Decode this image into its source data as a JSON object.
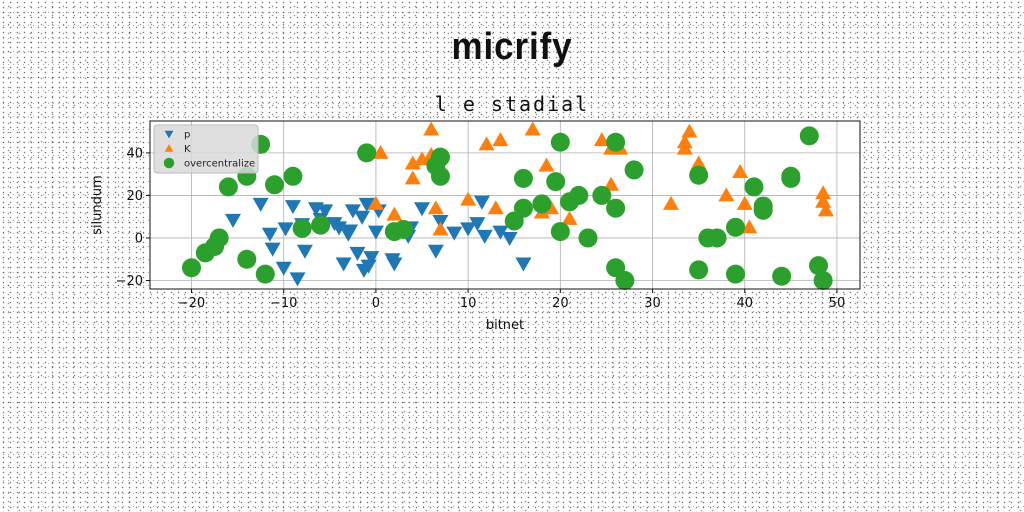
{
  "page_title": "micrify",
  "chart_data": {
    "type": "scatter",
    "title": "l e stadial",
    "xlabel": "bitnet",
    "ylabel": "silundum",
    "xlim": [
      -24.5,
      52.5
    ],
    "ylim": [
      -24,
      55
    ],
    "xticks": [
      -20,
      -10,
      0,
      10,
      20,
      30,
      40,
      50
    ],
    "yticks": [
      -20,
      0,
      20,
      40
    ],
    "grid": true,
    "legend_position": "top-left",
    "series": [
      {
        "name": "p",
        "marker": "triangle-down",
        "color": "#1f77b4",
        "points": [
          [
            -15.5,
            8.5
          ],
          [
            -12.5,
            16
          ],
          [
            -11.5,
            2
          ],
          [
            -11.2,
            -5
          ],
          [
            -10,
            -14
          ],
          [
            -9.8,
            4.5
          ],
          [
            -9,
            15
          ],
          [
            -8.5,
            -19
          ],
          [
            -8,
            6.5
          ],
          [
            -7.7,
            -6
          ],
          [
            -6.5,
            14
          ],
          [
            -6,
            9
          ],
          [
            -5.5,
            13
          ],
          [
            -4.5,
            7
          ],
          [
            -4,
            5
          ],
          [
            -3.5,
            -12
          ],
          [
            -3,
            2
          ],
          [
            -2.8,
            3.5
          ],
          [
            -2.5,
            13
          ],
          [
            -2,
            -7
          ],
          [
            -1.5,
            10
          ],
          [
            -1.3,
            -15
          ],
          [
            -1,
            16
          ],
          [
            -0.8,
            -13
          ],
          [
            -0.5,
            -9
          ],
          [
            0,
            3
          ],
          [
            0.3,
            13
          ],
          [
            1.8,
            -10
          ],
          [
            2,
            -12
          ],
          [
            3.5,
            1
          ],
          [
            3.8,
            5
          ],
          [
            5,
            14
          ],
          [
            6.5,
            -6
          ],
          [
            7,
            8
          ],
          [
            8.5,
            2.5
          ],
          [
            10,
            4.5
          ],
          [
            11,
            7
          ],
          [
            11.5,
            17
          ],
          [
            11.8,
            1
          ],
          [
            13.5,
            3
          ],
          [
            14.5,
            0
          ],
          [
            16,
            -12
          ]
        ]
      },
      {
        "name": "K",
        "marker": "triangle-up",
        "color": "#ff7f0e",
        "points": [
          [
            0,
            16
          ],
          [
            0.5,
            40
          ],
          [
            2,
            11
          ],
          [
            4,
            28
          ],
          [
            4,
            35
          ],
          [
            5,
            37
          ],
          [
            6,
            39
          ],
          [
            6,
            51
          ],
          [
            6.5,
            14
          ],
          [
            7,
            4
          ],
          [
            10,
            18
          ],
          [
            12,
            44
          ],
          [
            13,
            14
          ],
          [
            13.5,
            46
          ],
          [
            17,
            51
          ],
          [
            18,
            12
          ],
          [
            18.5,
            34
          ],
          [
            19,
            14
          ],
          [
            21,
            9
          ],
          [
            24.5,
            46
          ],
          [
            25.5,
            25
          ],
          [
            25.5,
            42
          ],
          [
            26.5,
            42
          ],
          [
            32,
            16
          ],
          [
            33.5,
            42
          ],
          [
            33.5,
            45
          ],
          [
            34,
            50
          ],
          [
            35,
            35
          ],
          [
            38,
            20
          ],
          [
            39.5,
            31
          ],
          [
            40,
            16
          ],
          [
            40.5,
            5
          ],
          [
            48.5,
            21
          ],
          [
            48.5,
            17
          ],
          [
            48.8,
            13
          ]
        ]
      },
      {
        "name": "overcentralize",
        "marker": "circle",
        "color": "#2ca02c",
        "points": [
          [
            -20,
            -14
          ],
          [
            -18.5,
            -7
          ],
          [
            -17.5,
            -4
          ],
          [
            -17,
            0
          ],
          [
            -16,
            24
          ],
          [
            -14,
            29
          ],
          [
            -14,
            -10
          ],
          [
            -12.5,
            44
          ],
          [
            -12,
            -17
          ],
          [
            -11,
            25
          ],
          [
            -9,
            29
          ],
          [
            -8,
            4.5
          ],
          [
            -6,
            6
          ],
          [
            -1,
            40
          ],
          [
            2,
            3
          ],
          [
            3,
            4
          ],
          [
            6.5,
            34
          ],
          [
            7,
            38
          ],
          [
            7,
            29
          ],
          [
            15,
            8
          ],
          [
            16,
            14
          ],
          [
            16,
            28
          ],
          [
            18,
            16
          ],
          [
            19.5,
            26.5
          ],
          [
            20,
            3
          ],
          [
            20,
            45
          ],
          [
            21,
            17
          ],
          [
            22,
            20
          ],
          [
            23,
            0
          ],
          [
            24.5,
            20
          ],
          [
            26,
            14
          ],
          [
            26,
            45
          ],
          [
            26,
            -14
          ],
          [
            27,
            -20
          ],
          [
            28,
            32
          ],
          [
            35,
            29.5
          ],
          [
            35,
            -15
          ],
          [
            36,
            0
          ],
          [
            37,
            0
          ],
          [
            39,
            5
          ],
          [
            39,
            -17
          ],
          [
            41,
            24
          ],
          [
            42,
            13
          ],
          [
            42,
            15
          ],
          [
            44,
            -18
          ],
          [
            45,
            29
          ],
          [
            45,
            28
          ],
          [
            47,
            48
          ],
          [
            48,
            -13
          ],
          [
            48.5,
            -20
          ]
        ]
      }
    ]
  }
}
